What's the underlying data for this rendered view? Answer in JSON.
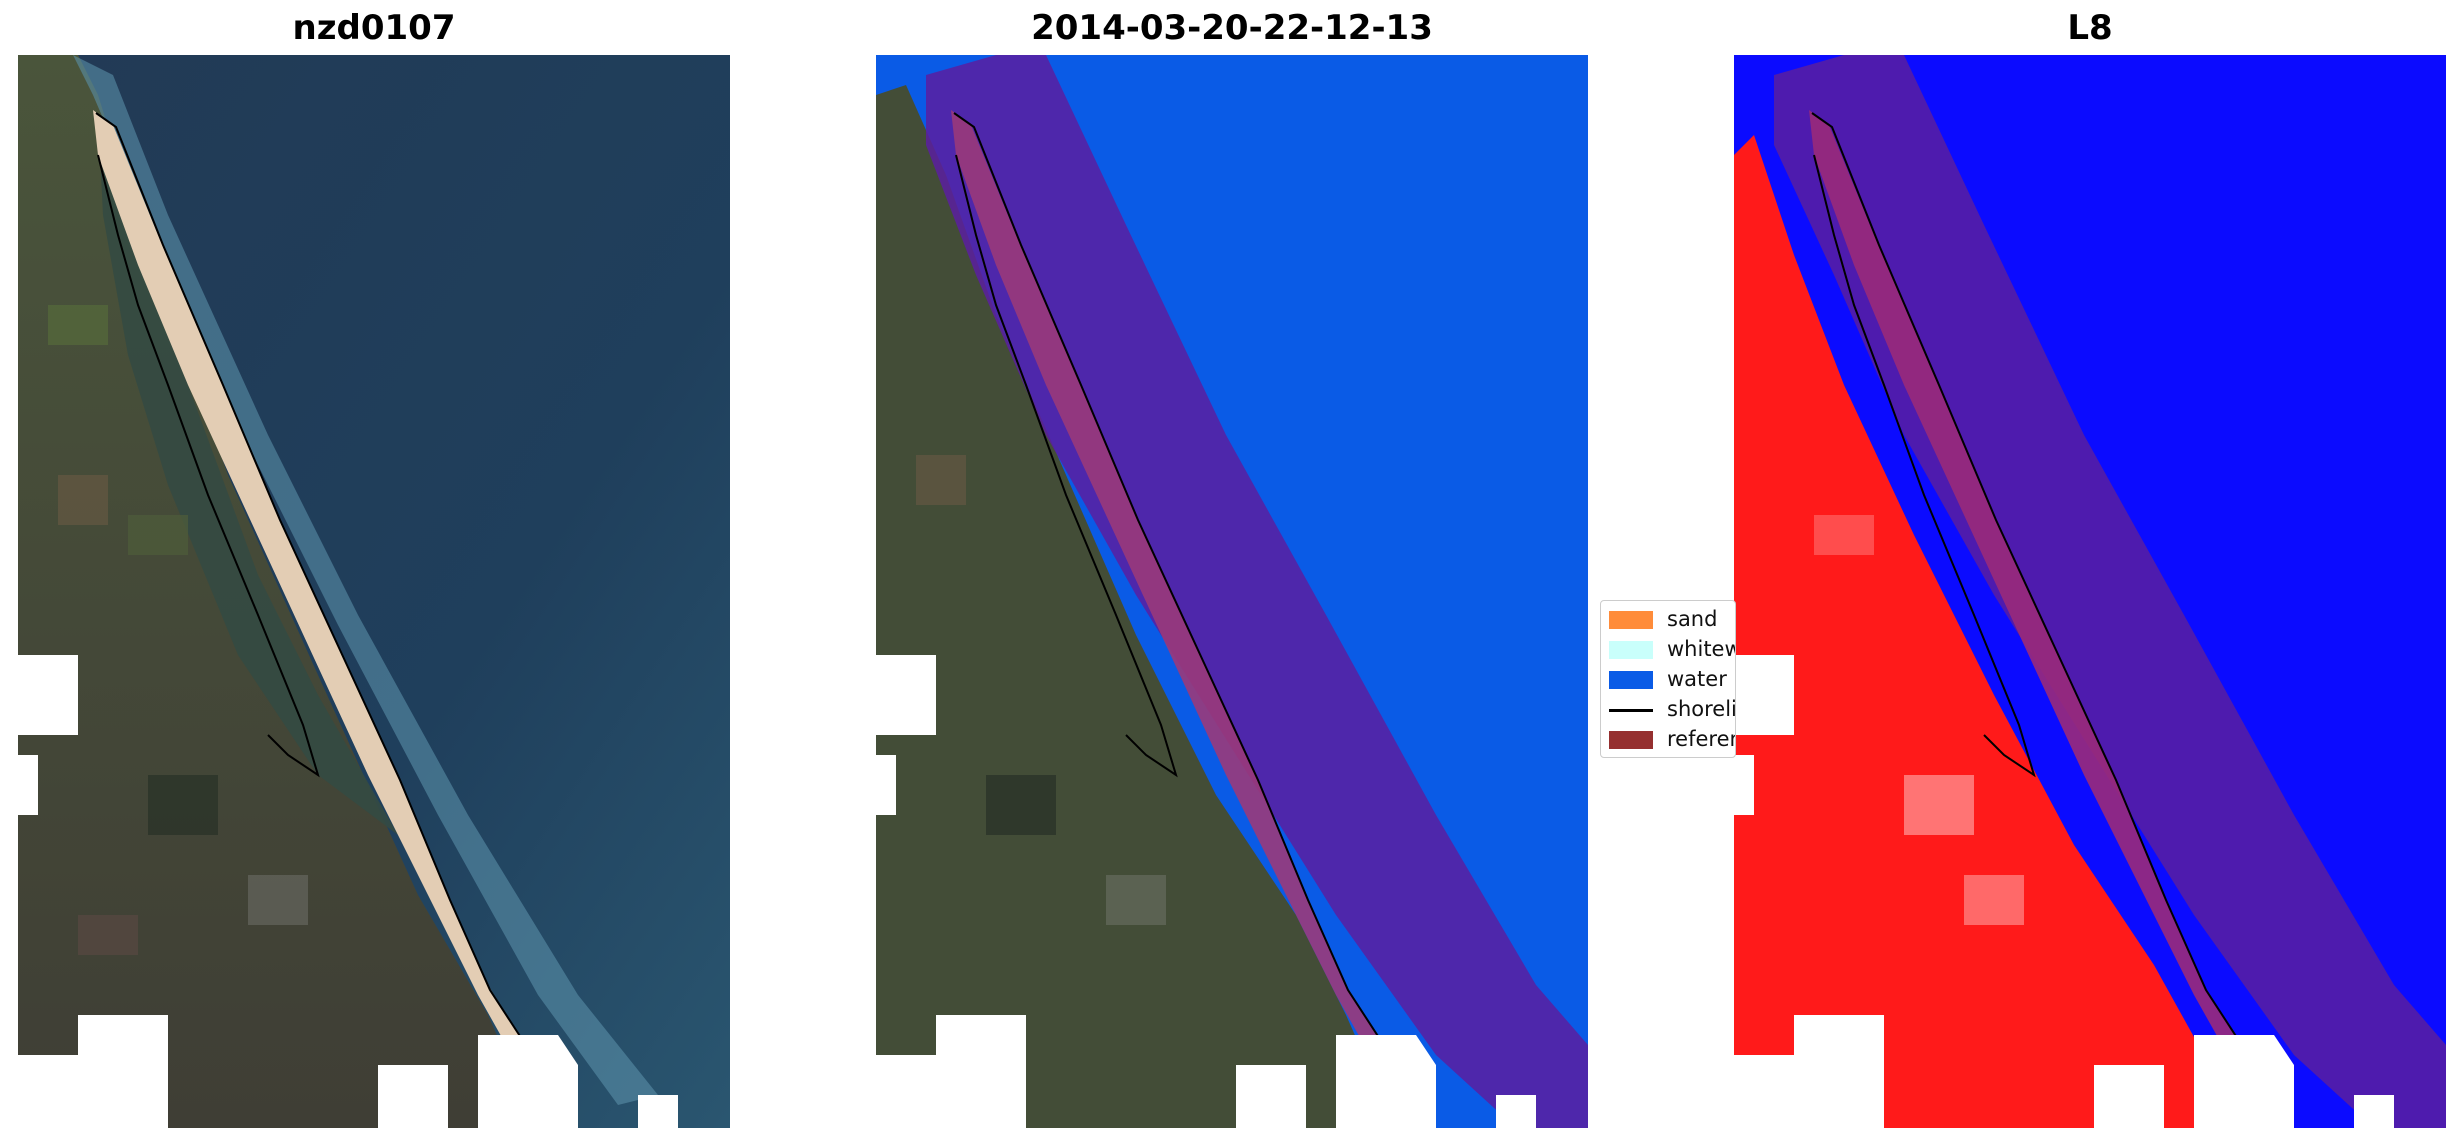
{
  "panels": [
    {
      "title": "nzd0107"
    },
    {
      "title": "2014-03-20-22-12-13"
    },
    {
      "title": "L8"
    }
  ],
  "legend": {
    "items": [
      {
        "label": "sand",
        "color": "#ff8c3a"
      },
      {
        "label": "whitewater",
        "color": "#c9fffb"
      },
      {
        "label": "water",
        "color": "#0a5be6"
      },
      {
        "label": "shoreline",
        "color": "#000000"
      },
      {
        "label": "reference",
        "color": "#952f2f"
      }
    ]
  },
  "colors": {
    "ocean_rgb": "#1f3d5c",
    "land_rgb": "#3f4a33",
    "beach_rgb": "#e3cdb4",
    "water_class": "#0a5be6",
    "buffer_overlay": "#5a1ea0",
    "land_index": "#ff1a1a",
    "water_index": "#0b0bff"
  }
}
